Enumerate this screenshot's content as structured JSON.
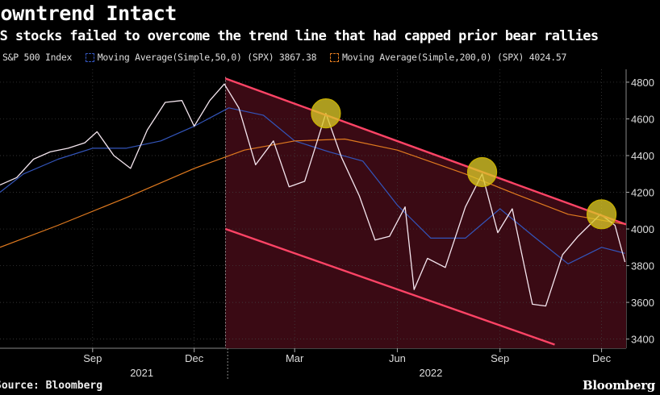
{
  "chart_data": {
    "type": "line",
    "title": "Downtrend Intact",
    "subtitle": "US stocks failed to overcome the trend line that had capped prior bear rallies",
    "source": "Source: Bloomberg",
    "brand": "Bloomberg",
    "legend": [
      {
        "name": "S&P 500 Index",
        "color": "#f5e6ef"
      },
      {
        "name": "Moving Average(Simple,50,0) (SPX) 3867.38",
        "color": "#3355bb"
      },
      {
        "name": "Moving Average(Simple,200,0) (SPX) 4024.57",
        "color": "#e07a1f"
      }
    ],
    "y_ticks": [
      3400,
      3600,
      3800,
      4000,
      4200,
      4400,
      4600,
      4800
    ],
    "ylim": [
      3350,
      4870
    ],
    "x_ticks": [
      {
        "date": "2021-09-01",
        "label": "Sep"
      },
      {
        "date": "2021-12-01",
        "label": "Dec"
      },
      {
        "date": "2022-03-01",
        "label": "Mar"
      },
      {
        "date": "2022-06-01",
        "label": "Jun"
      },
      {
        "date": "2022-09-01",
        "label": "Sep"
      },
      {
        "date": "2022-12-01",
        "label": "Dec"
      }
    ],
    "year_labels": [
      {
        "date": "2021-10-15",
        "label": "2021"
      },
      {
        "date": "2022-07-01",
        "label": "2022"
      }
    ],
    "xlim": [
      "2021-06-10",
      "2022-12-23"
    ],
    "series": [
      {
        "name": "S&P 500 Index",
        "color": "#f5e6ef",
        "x": [
          "2021-06-10",
          "2021-06-25",
          "2021-07-10",
          "2021-07-25",
          "2021-08-10",
          "2021-08-25",
          "2021-09-05",
          "2021-09-20",
          "2021-10-05",
          "2021-10-20",
          "2021-11-05",
          "2021-11-20",
          "2021-12-01",
          "2021-12-15",
          "2021-12-28",
          "2022-01-10",
          "2022-01-25",
          "2022-02-10",
          "2022-02-24",
          "2022-03-10",
          "2022-03-29",
          "2022-04-12",
          "2022-04-28",
          "2022-05-12",
          "2022-05-25",
          "2022-06-08",
          "2022-06-16",
          "2022-06-28",
          "2022-07-14",
          "2022-08-01",
          "2022-08-16",
          "2022-08-30",
          "2022-09-12",
          "2022-09-30",
          "2022-10-12",
          "2022-10-27",
          "2022-11-10",
          "2022-11-30",
          "2022-12-13",
          "2022-12-22"
        ],
        "values": [
          4240,
          4280,
          4380,
          4420,
          4440,
          4470,
          4530,
          4400,
          4330,
          4540,
          4690,
          4700,
          4560,
          4700,
          4790,
          4660,
          4350,
          4480,
          4230,
          4260,
          4630,
          4390,
          4180,
          3940,
          3960,
          4120,
          3670,
          3840,
          3790,
          4120,
          4300,
          3980,
          4110,
          3590,
          3580,
          3860,
          3960,
          4080,
          4020,
          3820
        ]
      },
      {
        "name": "Moving Average(Simple,50,0) (SPX)",
        "color": "#3355bb",
        "x": [
          "2021-06-10",
          "2021-07-01",
          "2021-08-01",
          "2021-09-01",
          "2021-10-01",
          "2021-11-01",
          "2021-12-01",
          "2022-01-01",
          "2022-02-01",
          "2022-03-01",
          "2022-04-01",
          "2022-05-01",
          "2022-06-01",
          "2022-07-01",
          "2022-08-01",
          "2022-09-01",
          "2022-10-01",
          "2022-11-01",
          "2022-12-01",
          "2022-12-22"
        ],
        "values": [
          4200,
          4300,
          4380,
          4440,
          4440,
          4480,
          4560,
          4660,
          4620,
          4480,
          4420,
          4370,
          4130,
          3950,
          3950,
          4110,
          3960,
          3810,
          3900,
          3867
        ]
      },
      {
        "name": "Moving Average(Simple,200,0) (SPX)",
        "color": "#e07a1f",
        "x": [
          "2021-06-10",
          "2021-08-01",
          "2021-10-01",
          "2021-12-01",
          "2022-01-15",
          "2022-03-01",
          "2022-04-15",
          "2022-06-01",
          "2022-08-01",
          "2022-09-15",
          "2022-11-01",
          "2022-12-22"
        ],
        "values": [
          3900,
          4020,
          4170,
          4330,
          4430,
          4480,
          4490,
          4430,
          4300,
          4190,
          4080,
          4025
        ]
      }
    ],
    "channel": {
      "upper": {
        "start": {
          "date": "2021-12-29",
          "value": 4820
        },
        "end": {
          "date": "2022-12-23",
          "value": 4025
        }
      },
      "lower": {
        "start": {
          "date": "2021-12-29",
          "value": 4000
        },
        "end": {
          "date": "2022-10-20",
          "value": 3370
        }
      },
      "fill": "#3a0a14",
      "line_color": "#ff4466"
    },
    "highlights": [
      {
        "date": "2022-03-29",
        "value": 4630
      },
      {
        "date": "2022-08-16",
        "value": 4310
      },
      {
        "date": "2022-12-01",
        "value": 4080
      }
    ]
  }
}
